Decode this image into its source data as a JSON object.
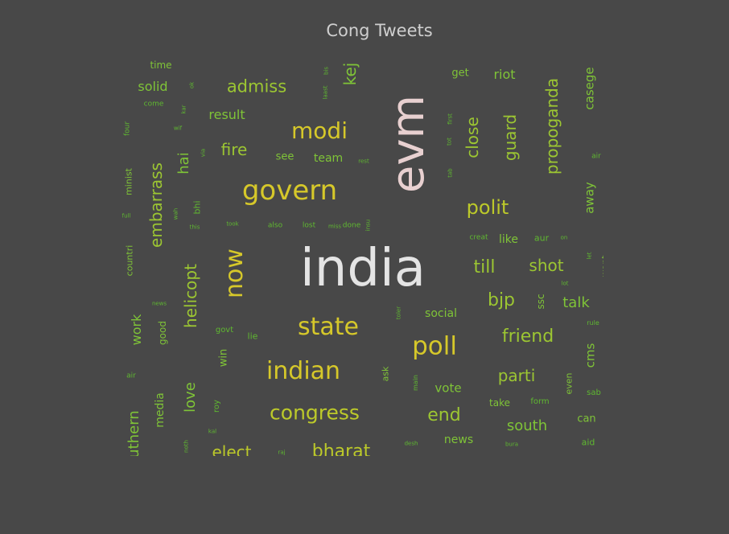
{
  "chart_data": {
    "type": "wordcloud",
    "title": "Cong Tweets",
    "colors": {
      "background": "#484848",
      "top": "#e4e4e4",
      "second": "#e8d0d0",
      "high": "#d6c82a",
      "mid": "#bcc92a",
      "low": "#7fc437",
      "tiny": "#5fb830"
    },
    "words": [
      {
        "text": "india",
        "rank": 1,
        "color": "#e4e4e4"
      },
      {
        "text": "evm",
        "rank": 2,
        "color": "#e8d0d0"
      },
      {
        "text": "govern",
        "rank": 3,
        "color": "#d6c82a"
      },
      {
        "text": "state",
        "rank": 4,
        "color": "#d6c82a"
      },
      {
        "text": "poll",
        "rank": 4,
        "color": "#d6c82a"
      },
      {
        "text": "indian",
        "rank": 4,
        "color": "#d6c82a"
      },
      {
        "text": "modi",
        "rank": 5,
        "color": "#d6c82a"
      },
      {
        "text": "now",
        "rank": 5,
        "color": "#d6c82a"
      },
      {
        "text": "congress",
        "rank": 6,
        "color": "#bcc92a"
      },
      {
        "text": "bharat",
        "rank": 6,
        "color": "#bcc92a"
      },
      {
        "text": "elect",
        "rank": 7,
        "color": "#bcc92a"
      },
      {
        "text": "polit",
        "rank": 7,
        "color": "#bcc92a"
      },
      {
        "text": "embarrass",
        "rank": 7,
        "color": "#9cc632"
      },
      {
        "text": "helicopt",
        "rank": 7,
        "color": "#9cc632"
      },
      {
        "text": "admiss",
        "rank": 8,
        "color": "#9cc632"
      },
      {
        "text": "fire",
        "rank": 8,
        "color": "#9cc632"
      },
      {
        "text": "close",
        "rank": 8,
        "color": "#9cc632"
      },
      {
        "text": "guard",
        "rank": 8,
        "color": "#9cc632"
      },
      {
        "text": "propoganda",
        "rank": 8,
        "color": "#9cc632"
      },
      {
        "text": "shot",
        "rank": 8,
        "color": "#9cc632"
      },
      {
        "text": "till",
        "rank": 8,
        "color": "#9cc632"
      },
      {
        "text": "bjp",
        "rank": 8,
        "color": "#9cc632"
      },
      {
        "text": "friend",
        "rank": 8,
        "color": "#9cc632"
      },
      {
        "text": "parti",
        "rank": 8,
        "color": "#9cc632"
      },
      {
        "text": "end",
        "rank": 8,
        "color": "#9cc632"
      },
      {
        "text": "south",
        "rank": 9,
        "color": "#7fc437"
      },
      {
        "text": "love",
        "rank": 9,
        "color": "#7fc437"
      },
      {
        "text": "solid",
        "rank": 9,
        "color": "#7fc437"
      },
      {
        "text": "result",
        "rank": 9,
        "color": "#7fc437"
      },
      {
        "text": "riot",
        "rank": 9,
        "color": "#7fc437"
      },
      {
        "text": "hai",
        "rank": 9,
        "color": "#7fc437"
      },
      {
        "text": "talk",
        "rank": 9,
        "color": "#7fc437"
      },
      {
        "text": "kej",
        "rank": 9,
        "color": "#7fc437"
      },
      {
        "text": "casege",
        "rank": 9,
        "color": "#7fc437"
      },
      {
        "text": "away",
        "rank": 9,
        "color": "#7fc437"
      },
      {
        "text": "work",
        "rank": 9,
        "color": "#7fc437"
      },
      {
        "text": "uthern",
        "rank": 9,
        "color": "#7fc437"
      },
      {
        "text": "vote",
        "rank": 10,
        "color": "#7fc437"
      },
      {
        "text": "social",
        "rank": 10,
        "color": "#7fc437"
      },
      {
        "text": "media",
        "rank": 10,
        "color": "#7fc437"
      },
      {
        "text": "cms",
        "rank": 10,
        "color": "#7fc437"
      },
      {
        "text": "team",
        "rank": 10,
        "color": "#7fc437"
      },
      {
        "text": "news",
        "rank": 10,
        "color": "#7fc437"
      },
      {
        "text": "like",
        "rank": 10,
        "color": "#7fc437"
      },
      {
        "text": "can",
        "rank": 10,
        "color": "#7fc437"
      },
      {
        "text": "win",
        "rank": 10,
        "color": "#7fc437"
      },
      {
        "text": "see",
        "rank": 10,
        "color": "#7fc437"
      },
      {
        "text": "take",
        "rank": 10,
        "color": "#7fc437"
      },
      {
        "text": "get",
        "rank": 10,
        "color": "#7fc437"
      },
      {
        "text": "time",
        "rank": 10,
        "color": "#7fc437"
      },
      {
        "text": "ssc",
        "rank": 10,
        "color": "#7fc437"
      },
      {
        "text": "good",
        "rank": 10,
        "color": "#7fc437"
      },
      {
        "text": "countri",
        "rank": 10,
        "color": "#7fc437"
      },
      {
        "text": "minist",
        "rank": 10,
        "color": "#7fc437"
      },
      {
        "text": "want",
        "rank": 10,
        "color": "#7fc437"
      },
      {
        "text": "even",
        "rank": 10,
        "color": "#7fc437"
      },
      {
        "text": "ask",
        "rank": 10,
        "color": "#7fc437"
      },
      {
        "text": "aid",
        "rank": 11,
        "color": "#5fb830"
      },
      {
        "text": "aur",
        "rank": 11,
        "color": "#5fb830"
      },
      {
        "text": "bhi",
        "rank": 11,
        "color": "#5fb830"
      },
      {
        "text": "lie",
        "rank": 11,
        "color": "#5fb830"
      },
      {
        "text": "govt",
        "rank": 11,
        "color": "#5fb830"
      },
      {
        "text": "form",
        "rank": 11,
        "color": "#5fb830"
      },
      {
        "text": "sab",
        "rank": 11,
        "color": "#5fb830"
      },
      {
        "text": "roy",
        "rank": 11,
        "color": "#5fb830"
      },
      {
        "text": "four",
        "rank": 11,
        "color": "#5fb830"
      },
      {
        "text": "come",
        "rank": 11,
        "color": "#5fb830"
      },
      {
        "text": "creat",
        "rank": 11,
        "color": "#5fb830"
      },
      {
        "text": "air",
        "rank": 11,
        "color": "#5fb830"
      },
      {
        "text": "also",
        "rank": 11,
        "color": "#5fb830"
      },
      {
        "text": "lost",
        "rank": 11,
        "color": "#5fb830"
      },
      {
        "text": "done",
        "rank": 11,
        "color": "#5fb830"
      },
      {
        "text": "air",
        "rank": 11,
        "color": "#5fb830"
      },
      {
        "text": "rule",
        "rank": 11,
        "color": "#5fb830"
      },
      {
        "text": "main",
        "rank": 11,
        "color": "#5fb830"
      },
      {
        "text": "tot",
        "rank": 11,
        "color": "#5fb830"
      },
      {
        "text": "tab",
        "rank": 12,
        "color": "#5fb830"
      },
      {
        "text": "first",
        "rank": 12,
        "color": "#5fb830"
      },
      {
        "text": "rest",
        "rank": 12,
        "color": "#5fb830"
      },
      {
        "text": "kar",
        "rank": 12,
        "color": "#5fb830"
      },
      {
        "text": "wif",
        "rank": 12,
        "color": "#5fb830"
      },
      {
        "text": "via",
        "rank": 12,
        "color": "#5fb830"
      },
      {
        "text": "wah",
        "rank": 12,
        "color": "#5fb830"
      },
      {
        "text": "full",
        "rank": 12,
        "color": "#5fb830"
      },
      {
        "text": "this",
        "rank": 12,
        "color": "#5fb830"
      },
      {
        "text": "took",
        "rank": 12,
        "color": "#5fb830"
      },
      {
        "text": "news",
        "rank": 12,
        "color": "#5fb830"
      },
      {
        "text": "miss",
        "rank": 12,
        "color": "#5fb830"
      },
      {
        "text": "toler",
        "rank": 12,
        "color": "#5fb830"
      },
      {
        "text": "on",
        "rank": 12,
        "color": "#5fb830"
      },
      {
        "text": "let",
        "rank": 12,
        "color": "#5fb830"
      },
      {
        "text": "lot",
        "rank": 12,
        "color": "#5fb830"
      },
      {
        "text": "desh",
        "rank": 12,
        "color": "#5fb830"
      },
      {
        "text": "bura",
        "rank": 12,
        "color": "#5fb830"
      },
      {
        "text": "kal",
        "rank": 12,
        "color": "#5fb830"
      },
      {
        "text": "noth",
        "rank": 12,
        "color": "#5fb830"
      },
      {
        "text": "raj",
        "rank": 12,
        "color": "#5fb830"
      },
      {
        "text": "laast",
        "rank": 12,
        "color": "#5fb830"
      },
      {
        "text": "ok",
        "rank": 12,
        "color": "#5fb830"
      },
      {
        "text": "bis",
        "rank": 12,
        "color": "#5fb830"
      },
      {
        "text": "insu",
        "rank": 12,
        "color": "#5fb830"
      },
      {
        "text": "dis",
        "rank": 12,
        "color": "#5fb830"
      },
      {
        "text": "ik",
        "rank": 12,
        "color": "#5fb830"
      }
    ]
  }
}
